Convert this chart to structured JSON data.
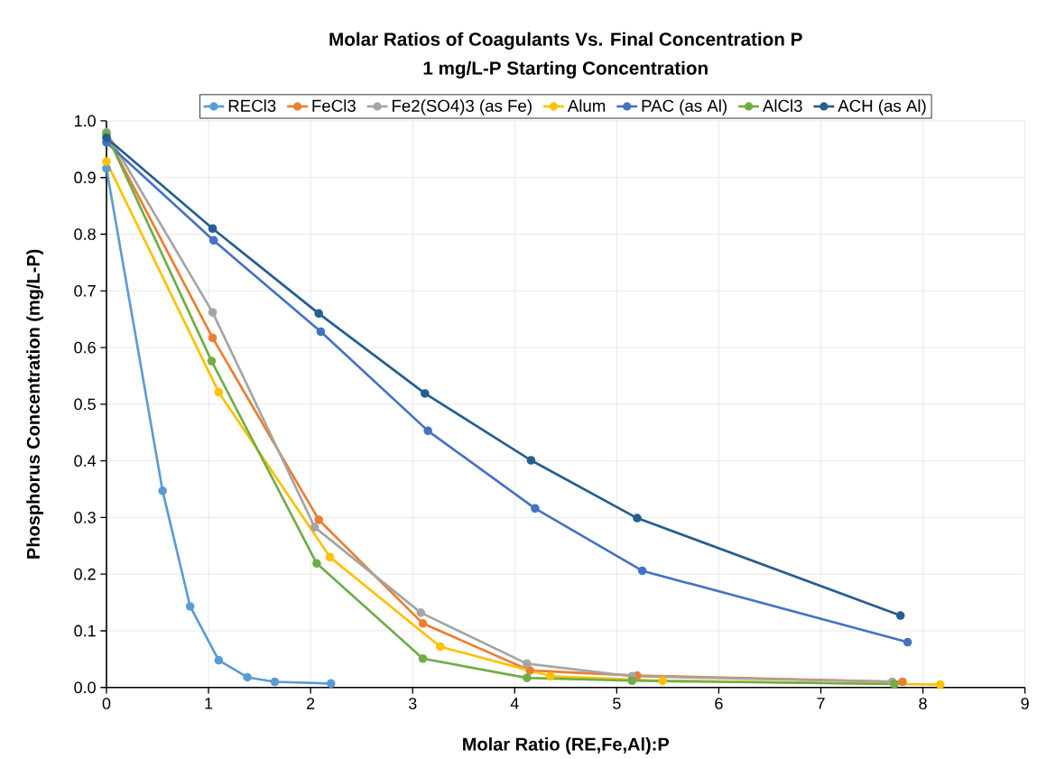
{
  "chart_data": {
    "type": "line",
    "title": "Molar Ratios of Coagulants Vs. Final Concentration P",
    "subtitle": "1 mg/L-P Starting Concentration",
    "xlabel": "Molar Ratio (RE,Fe,Al):P",
    "ylabel": "Phosphorus Concentration (mg/L-P)",
    "xlim": [
      0,
      9
    ],
    "ylim": [
      0,
      1
    ],
    "xticks": [
      0,
      1,
      2,
      3,
      4,
      5,
      6,
      7,
      8,
      9
    ],
    "yticks": [
      {
        "value": 0,
        "label": "0.0"
      },
      {
        "value": 0.1,
        "label": "0.1"
      },
      {
        "value": 0.2,
        "label": "0.2"
      },
      {
        "value": 0.3,
        "label": "0.3"
      },
      {
        "value": 0.4,
        "label": "0.4"
      },
      {
        "value": 0.5,
        "label": "0.5"
      },
      {
        "value": 0.6,
        "label": "0.6"
      },
      {
        "value": 0.7,
        "label": "0.7"
      },
      {
        "value": 0.8,
        "label": "0.8"
      },
      {
        "value": 0.9,
        "label": "0.9"
      },
      {
        "value": 1,
        "label": "1.0"
      }
    ],
    "grid": true,
    "legend": "top",
    "marker": "circle",
    "line_style": "solid",
    "series": [
      {
        "name": "RECl3",
        "color": "#5b9bd5",
        "x": [
          0,
          0.55,
          0.82,
          1.1,
          1.38,
          1.65,
          2.2
        ],
        "values": [
          0.916,
          0.347,
          0.143,
          0.048,
          0.018,
          0.01,
          0.007
        ]
      },
      {
        "name": "FeCl3",
        "color": "#ed7d31",
        "x": [
          0,
          1.04,
          2.08,
          3.1,
          4.15,
          5.2,
          7.8
        ],
        "values": [
          0.975,
          0.617,
          0.296,
          0.113,
          0.03,
          0.021,
          0.01
        ]
      },
      {
        "name": "Fe2(SO4)3 (as Fe)",
        "color": "#a5a5a5",
        "x": [
          0,
          1.04,
          2.04,
          3.08,
          4.12,
          5.15,
          7.7
        ],
        "values": [
          0.98,
          0.662,
          0.283,
          0.132,
          0.042,
          0.02,
          0.01
        ]
      },
      {
        "name": "Alum",
        "color": "#ffc000",
        "x": [
          0,
          1.1,
          2.19,
          3.27,
          4.35,
          5.45,
          8.17
        ],
        "values": [
          0.928,
          0.521,
          0.23,
          0.072,
          0.02,
          0.012,
          0.005
        ]
      },
      {
        "name": "PAC (as Al)",
        "color": "#4472c4",
        "x": [
          0,
          1.05,
          2.1,
          3.15,
          4.2,
          5.25,
          7.85
        ],
        "values": [
          0.962,
          0.789,
          0.628,
          0.453,
          0.316,
          0.206,
          0.08
        ]
      },
      {
        "name": "AlCl3",
        "color": "#70ad47",
        "x": [
          0,
          1.03,
          2.06,
          3.1,
          4.12,
          5.15,
          7.72
        ],
        "values": [
          0.977,
          0.576,
          0.219,
          0.051,
          0.017,
          0.012,
          0.006
        ]
      },
      {
        "name": "ACH (as Al)",
        "color": "#255e91",
        "x": [
          0,
          1.04,
          2.08,
          3.12,
          4.16,
          5.2,
          7.78
        ],
        "values": [
          0.97,
          0.81,
          0.66,
          0.519,
          0.401,
          0.299,
          0.127
        ]
      }
    ]
  }
}
